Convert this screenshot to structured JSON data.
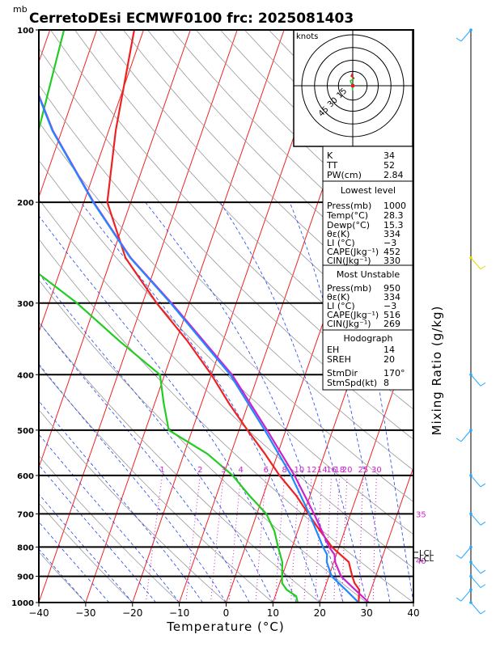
{
  "chart_data": {
    "type": "line",
    "title": "CerretoDEsi ECMWF0100  frc: 2025081403",
    "pressure_unit_label": "mb",
    "xlabel": "Temperature (°C)",
    "ylabel_right": "Mixing Ratio (g/kg)",
    "xlim": [
      -40,
      40
    ],
    "ylim": [
      1000,
      100
    ],
    "x_ticks": [
      "−40",
      "−30",
      "−20",
      "−10",
      "0",
      "10",
      "20",
      "30",
      "40"
    ],
    "pressure_levels": [
      {
        "p": 100,
        "label": "100"
      },
      {
        "p": 200,
        "label": "200"
      },
      {
        "p": 300,
        "label": "300"
      },
      {
        "p": 400,
        "label": "400"
      },
      {
        "p": 500,
        "label": "500"
      },
      {
        "p": 600,
        "label": "600"
      },
      {
        "p": 700,
        "label": "700"
      },
      {
        "p": 800,
        "label": "800"
      },
      {
        "p": 900,
        "label": "900"
      },
      {
        "p": 1000,
        "label": "1000"
      }
    ],
    "mixing_ratio_labels": [
      {
        "w": 1,
        "label": "1"
      },
      {
        "w": 2,
        "label": "2"
      },
      {
        "w": 3,
        "label": "3"
      },
      {
        "w": 4,
        "label": "4"
      },
      {
        "w": 6,
        "label": "6"
      },
      {
        "w": 8,
        "label": "8"
      },
      {
        "w": 10,
        "label": "10"
      },
      {
        "w": 12,
        "label": "12"
      },
      {
        "w": 14,
        "label": "14"
      },
      {
        "w": 16,
        "label": "16"
      },
      {
        "w": 18,
        "label": "18"
      },
      {
        "w": 20,
        "label": "20"
      },
      {
        "w": 25,
        "label": "25"
      },
      {
        "w": 30,
        "label": "30"
      }
    ],
    "side_labels": [
      {
        "p": 700,
        "label": "35"
      },
      {
        "p": 845,
        "label": "40"
      }
    ],
    "lcl_labels": [
      "LCL",
      "LCL"
    ],
    "series": [
      {
        "name": "Temperature",
        "color": "#ee2222",
        "points": [
          [
            1000,
            28.3
          ],
          [
            950,
            27.5
          ],
          [
            925,
            26.0
          ],
          [
            900,
            25.0
          ],
          [
            850,
            23.2
          ],
          [
            800,
            18.5
          ],
          [
            750,
            14.8
          ],
          [
            700,
            11.0
          ],
          [
            650,
            7.0
          ],
          [
            600,
            2.0
          ],
          [
            550,
            -2.7
          ],
          [
            500,
            -8.2
          ],
          [
            450,
            -14.0
          ],
          [
            400,
            -20.0
          ],
          [
            350,
            -27.5
          ],
          [
            300,
            -37.0
          ],
          [
            250,
            -47.0
          ],
          [
            200,
            -55.0
          ],
          [
            150,
            -58.5
          ],
          [
            100,
            -62.0
          ]
        ]
      },
      {
        "name": "Dewpoint",
        "color": "#22cc22",
        "points": [
          [
            1000,
            15.3
          ],
          [
            975,
            14.5
          ],
          [
            950,
            12.0
          ],
          [
            925,
            10.5
          ],
          [
            900,
            10.0
          ],
          [
            850,
            9.0
          ],
          [
            800,
            7.0
          ],
          [
            750,
            5.0
          ],
          [
            700,
            2.0
          ],
          [
            650,
            -3.0
          ],
          [
            600,
            -8.0
          ],
          [
            550,
            -15.0
          ],
          [
            500,
            -25.0
          ],
          [
            450,
            -28.0
          ],
          [
            400,
            -31.0
          ],
          [
            350,
            -42.0
          ],
          [
            300,
            -54.0
          ],
          [
            250,
            -70.0
          ],
          [
            200,
            -73.0
          ],
          [
            150,
            -75.0
          ],
          [
            100,
            -77.0
          ]
        ]
      },
      {
        "name": "Parcel",
        "color": "#2288ff",
        "points": [
          [
            1000,
            28.3
          ],
          [
            950,
            24.6
          ],
          [
            900,
            20.6
          ],
          [
            850,
            18.5
          ],
          [
            825,
            18.0
          ],
          [
            800,
            16.6
          ],
          [
            700,
            11.2
          ],
          [
            600,
            4.5
          ],
          [
            500,
            -4.5
          ],
          [
            400,
            -16.0
          ],
          [
            300,
            -34.0
          ],
          [
            250,
            -46.0
          ],
          [
            200,
            -58.0
          ],
          [
            150,
            -72.0
          ],
          [
            100,
            -88.0
          ]
        ]
      },
      {
        "name": "Virtual temperature",
        "color": "#cc22cc",
        "points": [
          [
            1000,
            30.5
          ],
          [
            950,
            26.6
          ],
          [
            900,
            22.6
          ],
          [
            850,
            20.3
          ],
          [
            825,
            19.6
          ],
          [
            800,
            17.9
          ],
          [
            700,
            12.2
          ],
          [
            600,
            5.2
          ],
          [
            500,
            -4.0
          ],
          [
            400,
            -15.6
          ],
          [
            300,
            -33.8
          ],
          [
            250,
            -45.9
          ],
          [
            200,
            -57.9
          ],
          [
            150,
            -71.9
          ],
          [
            100,
            -87.9
          ]
        ]
      }
    ],
    "grid": true,
    "legend": "none"
  },
  "hodograph": {
    "unit_label": "knots",
    "ring_labels": [
      "15",
      "30",
      "45"
    ]
  },
  "indices": {
    "top": [
      {
        "label": "K",
        "value": "34"
      },
      {
        "label": "TT",
        "value": "52"
      },
      {
        "label": "PW(cm)",
        "value": "2.84"
      }
    ],
    "lowest_level": {
      "title": "Lowest level",
      "rows": [
        {
          "label": "Press(mb)",
          "value": "1000"
        },
        {
          "label": "Temp(°C)",
          "value": "28.3"
        },
        {
          "label": "Dewp(°C)",
          "value": "15.3"
        },
        {
          "label": "θε(K)",
          "value": "334"
        },
        {
          "label": "LI (°C)",
          "value": "−3"
        },
        {
          "label": "CAPE(Jkg⁻¹)",
          "value": "452"
        },
        {
          "label": "CIN(Jkg⁻¹)",
          "value": "330"
        }
      ]
    },
    "most_unstable": {
      "title": "Most Unstable",
      "rows": [
        {
          "label": "Press(mb)",
          "value": "950"
        },
        {
          "label": "θε(K)",
          "value": "334"
        },
        {
          "label": "LI (°C)",
          "value": "−3"
        },
        {
          "label": "CAPE(Jkg⁻¹)",
          "value": "516"
        },
        {
          "label": "CIN(Jkg⁻¹)",
          "value": "269"
        }
      ]
    },
    "hodograph_box": {
      "title": "Hodograph",
      "rows": [
        {
          "label": "EH",
          "value": "14"
        },
        {
          "label": "SREH",
          "value": "20"
        },
        {
          "label": "StmDir",
          "value": "170°"
        },
        {
          "label": "StmSpd(kt)",
          "value": "8"
        }
      ]
    }
  },
  "wind_barbs": [
    {
      "p": 100,
      "color": "#22aaff"
    },
    {
      "p": 250,
      "color": "#dddd00"
    },
    {
      "p": 400,
      "color": "#22aaff"
    },
    {
      "p": 500,
      "color": "#22aaff"
    },
    {
      "p": 600,
      "color": "#22aaff"
    },
    {
      "p": 700,
      "color": "#22aaff"
    },
    {
      "p": 800,
      "color": "#22aaff"
    },
    {
      "p": 850,
      "color": "#22aaff"
    },
    {
      "p": 900,
      "color": "#22aaff"
    },
    {
      "p": 950,
      "color": "#22aaff"
    },
    {
      "p": 1000,
      "color": "#22aaff"
    }
  ],
  "colors": {
    "isotherm": "#ee2222",
    "dry_adiabat": "#999999",
    "moist_adiabat": "#2244ee",
    "mixing_ratio": "#cc22cc",
    "barb": "#22aaff"
  }
}
